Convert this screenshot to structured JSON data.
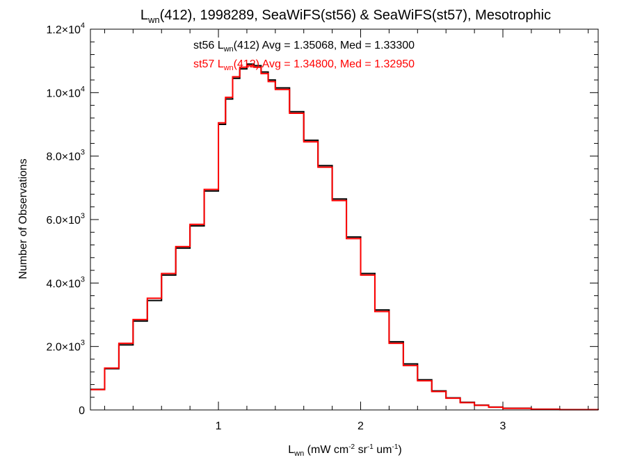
{
  "chart_data": {
    "type": "line",
    "step": true,
    "title": {
      "base": "L",
      "sub": "wn",
      "rest": "(412), 1998289, SeaWiFS(st56) & SeaWiFS(st57), Mesotrophic"
    },
    "xlabel": {
      "base": "L",
      "sub": "wn",
      "p1": " (mW cm",
      "s1": "-2",
      "p2": " sr",
      "s2": "-1",
      "p3": " um",
      "s3": "-1",
      "p4": ")"
    },
    "ylabel": "Number of Observations",
    "xlim": [
      0.1,
      3.67
    ],
    "ylim": [
      0,
      12000
    ],
    "x_ticks": [
      {
        "v": 1,
        "label": "1"
      },
      {
        "v": 2,
        "label": "2"
      },
      {
        "v": 3,
        "label": "3"
      }
    ],
    "y_ticks": [
      {
        "v": 0,
        "label": "0",
        "exp": ""
      },
      {
        "v": 2000,
        "label": "2.0×10",
        "exp": "3"
      },
      {
        "v": 4000,
        "label": "4.0×10",
        "exp": "3"
      },
      {
        "v": 6000,
        "label": "6.0×10",
        "exp": "3"
      },
      {
        "v": 8000,
        "label": "8.0×10",
        "exp": "3"
      },
      {
        "v": 10000,
        "label": "1.0×10",
        "exp": "4"
      },
      {
        "v": 12000,
        "label": "1.2×10",
        "exp": "4"
      }
    ],
    "annotations": [
      {
        "name": "st56",
        "a": "st56 L",
        "sub": "wn",
        "b": "(412) Avg = 1.35068, Med = 1.33300",
        "color": "#000000"
      },
      {
        "name": "st57",
        "a": "st57 L",
        "sub": "wn",
        "b": "(412) Avg = 1.34800, Med = 1.32950",
        "color": "#ff0000"
      }
    ],
    "series": [
      {
        "name": "st56",
        "color": "#000000",
        "x": [
          0.1,
          0.2,
          0.3,
          0.4,
          0.5,
          0.6,
          0.7,
          0.8,
          0.9,
          1.0,
          1.05,
          1.1,
          1.15,
          1.2,
          1.25,
          1.3,
          1.35,
          1.4,
          1.5,
          1.6,
          1.7,
          1.8,
          1.9,
          2.0,
          2.1,
          2.2,
          2.3,
          2.4,
          2.5,
          2.6,
          2.7,
          2.8,
          2.9,
          3.0,
          3.2,
          3.4,
          3.67
        ],
        "y": [
          650,
          1300,
          2050,
          2800,
          3450,
          4250,
          5100,
          5800,
          6900,
          9000,
          9800,
          10450,
          10750,
          10900,
          10850,
          10650,
          10400,
          10150,
          9400,
          8500,
          7700,
          6650,
          5450,
          4300,
          3150,
          2150,
          1450,
          950,
          600,
          380,
          240,
          150,
          90,
          55,
          25,
          10,
          5
        ]
      },
      {
        "name": "st57",
        "color": "#ff0000",
        "x": [
          0.1,
          0.2,
          0.3,
          0.4,
          0.5,
          0.6,
          0.7,
          0.8,
          0.9,
          1.0,
          1.05,
          1.1,
          1.15,
          1.2,
          1.25,
          1.3,
          1.35,
          1.4,
          1.5,
          1.6,
          1.7,
          1.8,
          1.9,
          2.0,
          2.1,
          2.2,
          2.3,
          2.4,
          2.5,
          2.6,
          2.7,
          2.8,
          2.9,
          3.0,
          3.2,
          3.4,
          3.67
        ],
        "y": [
          640,
          1320,
          2100,
          2850,
          3520,
          4300,
          5150,
          5850,
          6950,
          9050,
          9850,
          10500,
          10800,
          10850,
          10800,
          10600,
          10350,
          10100,
          9350,
          8450,
          7650,
          6600,
          5400,
          4250,
          3100,
          2100,
          1400,
          920,
          580,
          370,
          230,
          145,
          85,
          50,
          22,
          9,
          4
        ]
      }
    ]
  }
}
